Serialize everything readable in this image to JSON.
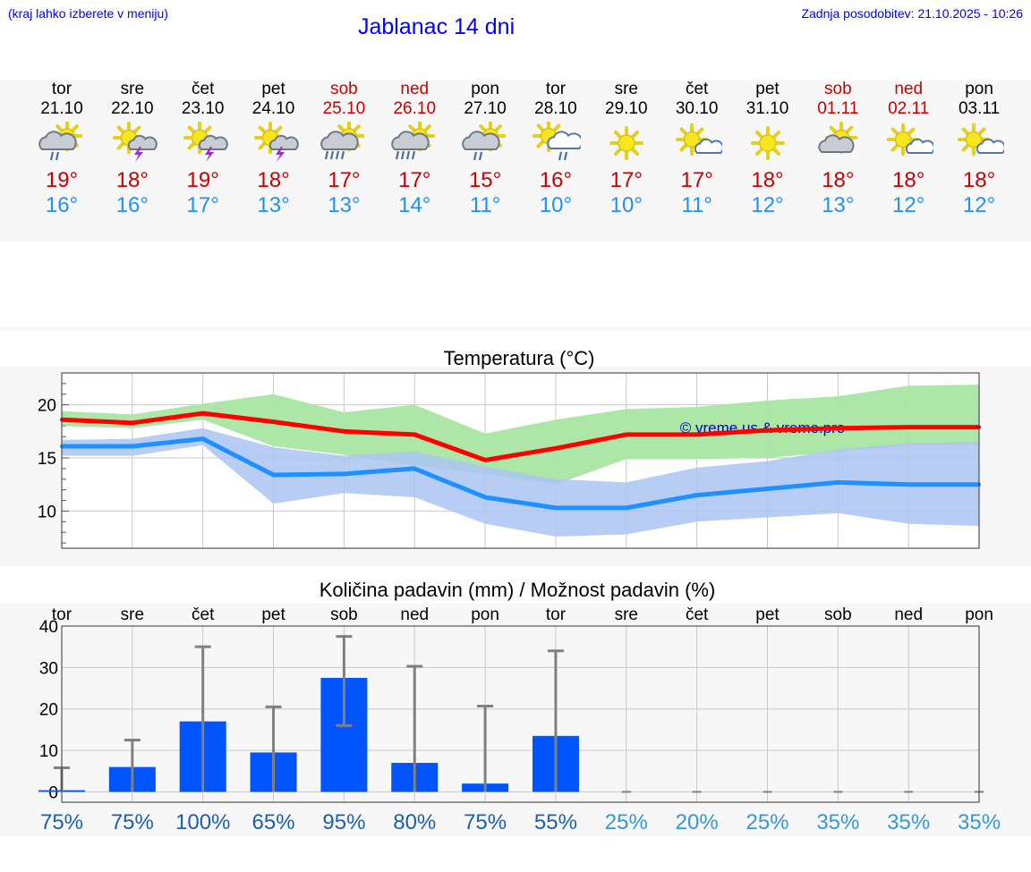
{
  "header": {
    "menu_hint": "(kraj lahko izberete v meniju)",
    "title": "Jablanac 14 dni",
    "updated": "Zadnja posodobitev: 21.10.2025 - 10:26"
  },
  "days": [
    {
      "name": "tor",
      "date": "21.10",
      "weekend": false,
      "icon": "sun-cloud-rain-icon",
      "tmax": "19°",
      "tmin": "16°"
    },
    {
      "name": "sre",
      "date": "22.10",
      "weekend": false,
      "icon": "sun-cloud-thunder-icon",
      "tmax": "18°",
      "tmin": "16°"
    },
    {
      "name": "čet",
      "date": "23.10",
      "weekend": false,
      "icon": "sun-cloud-thunder-icon",
      "tmax": "19°",
      "tmin": "17°"
    },
    {
      "name": "pet",
      "date": "24.10",
      "weekend": false,
      "icon": "sun-cloud-thunder-icon",
      "tmax": "18°",
      "tmin": "13°"
    },
    {
      "name": "sob",
      "date": "25.10",
      "weekend": true,
      "icon": "sun-cloud-heavy-rain-icon",
      "tmax": "17°",
      "tmin": "13°"
    },
    {
      "name": "ned",
      "date": "26.10",
      "weekend": true,
      "icon": "sun-cloud-heavy-rain-icon",
      "tmax": "17°",
      "tmin": "14°"
    },
    {
      "name": "pon",
      "date": "27.10",
      "weekend": false,
      "icon": "sun-cloud-rain-icon",
      "tmax": "15°",
      "tmin": "11°"
    },
    {
      "name": "tor",
      "date": "28.10",
      "weekend": false,
      "icon": "sun-white-cloud-rain-icon",
      "tmax": "16°",
      "tmin": "10°"
    },
    {
      "name": "sre",
      "date": "29.10",
      "weekend": false,
      "icon": "sun-icon",
      "tmax": "17°",
      "tmin": "10°"
    },
    {
      "name": "čet",
      "date": "30.10",
      "weekend": false,
      "icon": "sun-small-cloud-icon",
      "tmax": "17°",
      "tmin": "11°"
    },
    {
      "name": "pet",
      "date": "31.10",
      "weekend": false,
      "icon": "sun-icon",
      "tmax": "18°",
      "tmin": "12°"
    },
    {
      "name": "sob",
      "date": "01.11",
      "weekend": true,
      "icon": "sun-grey-cloud-icon",
      "tmax": "18°",
      "tmin": "13°"
    },
    {
      "name": "ned",
      "date": "02.11",
      "weekend": true,
      "icon": "sun-small-cloud-icon",
      "tmax": "18°",
      "tmin": "12°"
    },
    {
      "name": "pon",
      "date": "03.11",
      "weekend": false,
      "icon": "sun-small-cloud-icon",
      "tmax": "18°",
      "tmin": "12°"
    }
  ],
  "colors": {
    "max_line": "#ff0000",
    "max_band": "#a8e6a3",
    "min_line": "#1e90ff",
    "min_band": "#aac4f2",
    "bar": "#0055ff",
    "whisker": "#808080",
    "pct_high": "#1a5fb4",
    "pct_low": "#3399dd"
  },
  "chart_data": [
    {
      "type": "line",
      "title": "Temperatura (°C)",
      "watermark": "© vreme.us & vreme.pro",
      "x": [
        "21.10",
        "22.10",
        "23.10",
        "24.10",
        "25.10",
        "26.10",
        "27.10",
        "28.10",
        "29.10",
        "30.10",
        "31.10",
        "01.11",
        "02.11",
        "03.11"
      ],
      "ylim": [
        6.5,
        23
      ],
      "yticks": [
        10,
        15,
        20
      ],
      "grid": true,
      "series": [
        {
          "name": "max",
          "values": [
            18.6,
            18.3,
            19.2,
            18.4,
            17.5,
            17.2,
            14.8,
            15.9,
            17.2,
            17.2,
            17.6,
            17.8,
            17.9,
            17.9
          ],
          "band_low": [
            18.0,
            17.8,
            18.6,
            16.1,
            15.3,
            14.3,
            13.5,
            12.5,
            14.9,
            14.9,
            15.0,
            15.6,
            16.2,
            16.3
          ],
          "band_high": [
            19.4,
            19.1,
            20.1,
            21.0,
            19.3,
            20.0,
            17.3,
            18.6,
            19.6,
            19.8,
            20.4,
            20.8,
            21.8,
            21.9
          ]
        },
        {
          "name": "min",
          "values": [
            16.1,
            16.1,
            16.8,
            13.4,
            13.5,
            14.0,
            11.3,
            10.3,
            10.3,
            11.5,
            12.1,
            12.7,
            12.5,
            12.5
          ],
          "band_low": [
            15.2,
            15.2,
            16.2,
            10.7,
            11.7,
            11.3,
            8.8,
            7.6,
            7.8,
            9.0,
            9.4,
            9.8,
            8.8,
            8.6
          ],
          "band_high": [
            16.7,
            16.8,
            17.8,
            16.0,
            15.2,
            15.6,
            14.2,
            13.0,
            12.7,
            14.1,
            14.7,
            15.8,
            16.4,
            16.5
          ]
        }
      ]
    },
    {
      "type": "bar",
      "title": "Količina padavin (mm) / Možnost padavin (%)",
      "categories": [
        "tor",
        "sre",
        "čet",
        "pet",
        "sob",
        "ned",
        "pon",
        "tor",
        "sre",
        "čet",
        "pet",
        "sob",
        "ned",
        "pon"
      ],
      "values": [
        0.4,
        6.0,
        17.0,
        9.5,
        27.5,
        7.0,
        2.0,
        13.5,
        0,
        0,
        0,
        0,
        0,
        0
      ],
      "whisker_low": [
        0,
        0,
        0,
        0,
        16.0,
        0,
        0,
        0,
        0,
        0,
        0,
        0,
        0,
        0
      ],
      "whisker_high": [
        5.8,
        12.5,
        35.0,
        20.5,
        37.5,
        30.3,
        20.7,
        34.0,
        0,
        0,
        0,
        0,
        0,
        0
      ],
      "probability": [
        "75%",
        "75%",
        "100%",
        "65%",
        "95%",
        "80%",
        "75%",
        "55%",
        "25%",
        "20%",
        "25%",
        "35%",
        "35%",
        "35%"
      ],
      "ylim": [
        -2.5,
        40
      ],
      "yticks": [
        0,
        10,
        20,
        30,
        40
      ],
      "grid": true
    }
  ]
}
